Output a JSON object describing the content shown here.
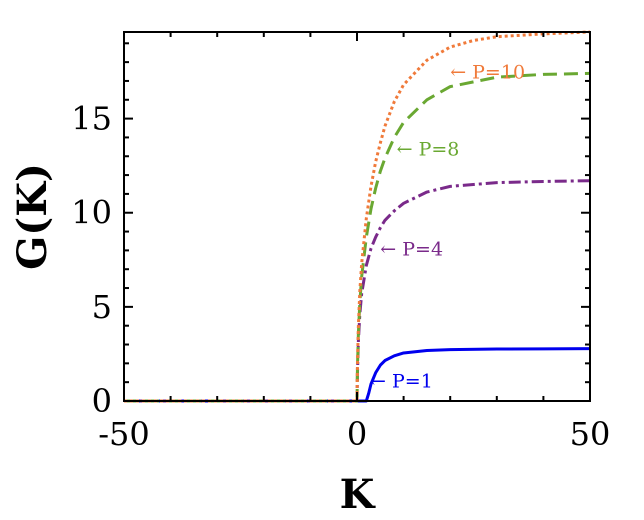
{
  "chart_data": {
    "type": "line",
    "xlabel": "K",
    "ylabel": "G(K)",
    "xlim": [
      -50,
      50
    ],
    "ylim": [
      0,
      19.6
    ],
    "x_ticks": [
      -50,
      0,
      50
    ],
    "x_tick_labels": [
      "-50",
      "0",
      "50"
    ],
    "y_ticks": [
      0,
      5,
      10,
      15
    ],
    "y_tick_labels": [
      "0",
      "5",
      "10",
      "15"
    ],
    "grid": false,
    "legend": "none",
    "series": [
      {
        "key": "p1",
        "color": "#0000ee",
        "dash": "solid",
        "x": [
          -50,
          0,
          2,
          2.5,
          3,
          4,
          5,
          6,
          8,
          10,
          15,
          20,
          30,
          40,
          50
        ],
        "y": [
          0,
          0,
          0,
          0.4,
          0.9,
          1.5,
          1.9,
          2.15,
          2.4,
          2.55,
          2.68,
          2.73,
          2.76,
          2.77,
          2.78
        ]
      },
      {
        "key": "p4",
        "color": "#7a2a8a",
        "dash": "dashdot",
        "x": [
          -50,
          0,
          0.1,
          0.3,
          0.6,
          1,
          2,
          3,
          4,
          5,
          6,
          8,
          10,
          15,
          20,
          30,
          40,
          50
        ],
        "y": [
          0,
          0,
          1.5,
          3.2,
          4.6,
          5.7,
          7.2,
          8.1,
          8.7,
          9.2,
          9.6,
          10.1,
          10.5,
          11.1,
          11.4,
          11.6,
          11.66,
          11.7
        ]
      },
      {
        "key": "p8",
        "color": "#6aa832",
        "dash": "dashed",
        "x": [
          -50,
          0,
          0.1,
          0.3,
          0.6,
          1,
          2,
          3,
          4,
          5,
          6,
          8,
          10,
          15,
          20,
          30,
          40,
          50
        ],
        "y": [
          0,
          0,
          1.8,
          3.6,
          5.2,
          6.6,
          8.7,
          10.2,
          11.3,
          12.2,
          12.9,
          14.0,
          14.8,
          16.0,
          16.7,
          17.2,
          17.35,
          17.4
        ]
      },
      {
        "key": "p10",
        "color": "#f07a3a",
        "dash": "dotted",
        "x": [
          -50,
          0,
          0.1,
          0.3,
          0.6,
          1,
          2,
          3,
          4,
          5,
          6,
          8,
          10,
          15,
          20,
          25,
          30,
          40,
          50
        ],
        "y": [
          0,
          0,
          2.0,
          4.0,
          5.8,
          7.3,
          9.7,
          11.4,
          12.7,
          13.7,
          14.6,
          15.9,
          16.8,
          18.1,
          18.8,
          19.15,
          19.35,
          19.5,
          19.6
        ]
      }
    ],
    "annotations": [
      {
        "text": "← P=1",
        "color": "#0000ee",
        "x": 2.8,
        "y": 1.1
      },
      {
        "text": "← P=4",
        "color": "#7a2a8a",
        "x": 5.0,
        "y": 8.1
      },
      {
        "text": "← P=8",
        "color": "#6aa832",
        "x": 8.5,
        "y": 13.4
      },
      {
        "text": "← P=10",
        "color": "#f07a3a",
        "x": 20.0,
        "y": 17.5
      }
    ]
  }
}
